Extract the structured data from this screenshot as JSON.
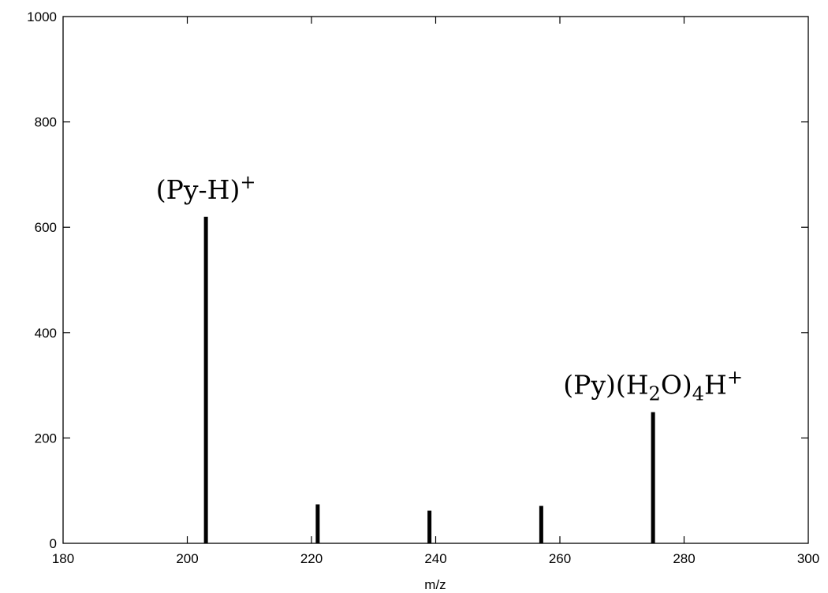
{
  "chart_data": {
    "type": "bar",
    "title": "",
    "xlabel": "m/z",
    "ylabel": "",
    "xlim": [
      180,
      300
    ],
    "ylim": [
      0,
      1000
    ],
    "xticks": [
      180,
      200,
      220,
      240,
      260,
      280,
      300
    ],
    "yticks": [
      0,
      200,
      400,
      600,
      800,
      1000
    ],
    "grid": false,
    "legend": "none",
    "bar_color": "#000000",
    "points": [
      {
        "x": 203,
        "y": 620
      },
      {
        "x": 221,
        "y": 74
      },
      {
        "x": 239,
        "y": 62
      },
      {
        "x": 257,
        "y": 71
      },
      {
        "x": 275,
        "y": 249
      }
    ],
    "annotations": [
      {
        "id": "py-h",
        "x": 203,
        "parts": [
          {
            "text": "(Py-H)",
            "shift": "none"
          },
          {
            "text": "+",
            "shift": "super"
          }
        ]
      },
      {
        "id": "py-h2o4h",
        "x": 275,
        "parts": [
          {
            "text": "(Py)(H",
            "shift": "none"
          },
          {
            "text": "2",
            "shift": "sub"
          },
          {
            "text": "O)",
            "shift": "none"
          },
          {
            "text": "4",
            "shift": "sub"
          },
          {
            "text": "H",
            "shift": "none"
          },
          {
            "text": "+",
            "shift": "super"
          }
        ]
      }
    ]
  }
}
